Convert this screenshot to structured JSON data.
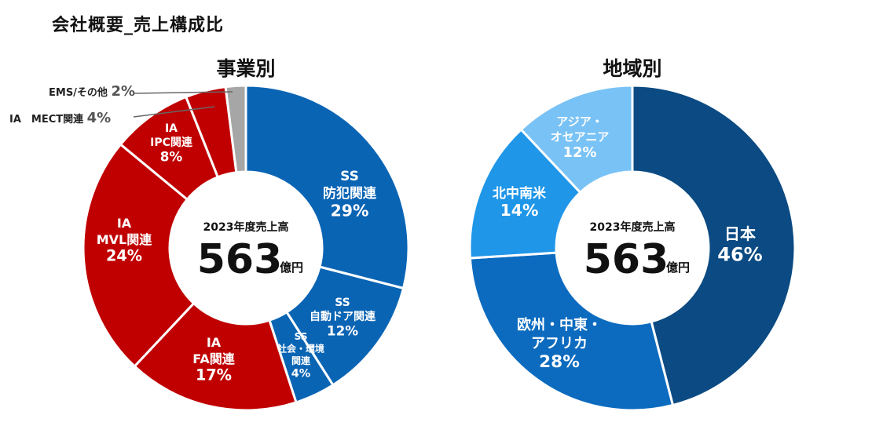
{
  "page": {
    "title": "会社概要_売上構成比"
  },
  "colors": {
    "ss_blue": "#0a64b4",
    "ia_red": "#c00000",
    "other_gray": "#a6a6a6",
    "japan": "#0b4a82",
    "europe": "#0c6bbf",
    "americas": "#1f96e8",
    "asia": "#79c2f5"
  },
  "chart_data": [
    {
      "type": "pie",
      "title": "事業別",
      "center": {
        "subtitle": "2023年度売上高",
        "value": "563",
        "unit": "億円"
      },
      "slices": [
        {
          "name": "SS 防犯関連",
          "label_lines": [
            "SS",
            "防犯関連"
          ],
          "pct_text": "29%",
          "value": 29,
          "color": "#0a64b4"
        },
        {
          "name": "SS 自動ドア関連",
          "label_lines": [
            "SS",
            "自動ドア関連"
          ],
          "pct_text": "12%",
          "value": 12,
          "color": "#0a64b4"
        },
        {
          "name": "SS 社会・環境関連",
          "label_lines": [
            "SS",
            "社会・環境",
            "関連"
          ],
          "pct_text": "4%",
          "value": 4,
          "color": "#0a64b4"
        },
        {
          "name": "IA FA関連",
          "label_lines": [
            "IA",
            "FA関連"
          ],
          "pct_text": "17%",
          "value": 17,
          "color": "#c00000"
        },
        {
          "name": "IA MVL関連",
          "label_lines": [
            "IA",
            "MVL関連"
          ],
          "pct_text": "24%",
          "value": 24,
          "color": "#c00000"
        },
        {
          "name": "IA IPC関連",
          "label_lines": [
            "IA",
            "IPC関連"
          ],
          "pct_text": "8%",
          "value": 8,
          "color": "#c00000"
        },
        {
          "name": "IA MECT関連",
          "label_lines": [],
          "pct_text": "4%",
          "value": 4,
          "color": "#c00000",
          "outside_label": "IA　MECT関連"
        },
        {
          "name": "EMS/その他",
          "label_lines": [],
          "pct_text": "2%",
          "value": 2,
          "color": "#a6a6a6",
          "outside_label": "EMS/その他"
        }
      ]
    },
    {
      "type": "pie",
      "title": "地域別",
      "center": {
        "subtitle": "2023年度売上高",
        "value": "563",
        "unit": "億円"
      },
      "slices": [
        {
          "name": "日本",
          "label_lines": [
            "日本"
          ],
          "pct_text": "46%",
          "value": 46,
          "color": "#0b4a82"
        },
        {
          "name": "欧州・中東・アフリカ",
          "label_lines": [
            "欧州・中東・",
            "アフリカ"
          ],
          "pct_text": "28%",
          "value": 28,
          "color": "#0c6bbf"
        },
        {
          "name": "北中南米",
          "label_lines": [
            "北中南米"
          ],
          "pct_text": "14%",
          "value": 14,
          "color": "#1f96e8"
        },
        {
          "name": "アジア・オセアニア",
          "label_lines": [
            "アジア・",
            "オセアニア"
          ],
          "pct_text": "12%",
          "value": 12,
          "color": "#79c2f5"
        }
      ]
    }
  ]
}
